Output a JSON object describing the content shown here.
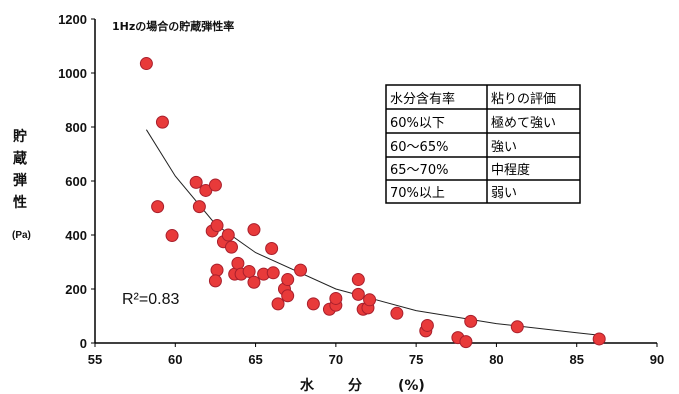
{
  "chart_data": {
    "type": "scatter",
    "title": "1Hzの場合の貯蔵弾性率",
    "ylabel": [
      "貯",
      "蔵",
      "弾",
      "性"
    ],
    "yunit": "(Pa)",
    "xlabel": [
      "水",
      "分",
      "(%)"
    ],
    "xlim": [
      55,
      90
    ],
    "ylim": [
      0,
      1200
    ],
    "xticks": [
      "55",
      "60",
      "65",
      "70",
      "75",
      "80",
      "85",
      "90"
    ],
    "yticks": [
      "0",
      "200",
      "400",
      "600",
      "800",
      "1000",
      "1200"
    ],
    "grid": false,
    "annotation": "R²=0.83",
    "points": [
      {
        "x": 58.2,
        "y": 1035
      },
      {
        "x": 59.2,
        "y": 818
      },
      {
        "x": 58.9,
        "y": 505
      },
      {
        "x": 59.8,
        "y": 398
      },
      {
        "x": 61.3,
        "y": 595
      },
      {
        "x": 61.5,
        "y": 505
      },
      {
        "x": 61.9,
        "y": 565
      },
      {
        "x": 62.5,
        "y": 585
      },
      {
        "x": 62.3,
        "y": 415
      },
      {
        "x": 62.6,
        "y": 435
      },
      {
        "x": 63.0,
        "y": 375
      },
      {
        "x": 63.3,
        "y": 400
      },
      {
        "x": 63.5,
        "y": 355
      },
      {
        "x": 62.6,
        "y": 270
      },
      {
        "x": 62.5,
        "y": 230
      },
      {
        "x": 63.7,
        "y": 255
      },
      {
        "x": 63.9,
        "y": 295
      },
      {
        "x": 64.1,
        "y": 255
      },
      {
        "x": 64.6,
        "y": 265
      },
      {
        "x": 64.9,
        "y": 420
      },
      {
        "x": 64.9,
        "y": 225
      },
      {
        "x": 65.5,
        "y": 255
      },
      {
        "x": 66.0,
        "y": 350
      },
      {
        "x": 66.1,
        "y": 260
      },
      {
        "x": 66.4,
        "y": 145
      },
      {
        "x": 66.8,
        "y": 200
      },
      {
        "x": 67.0,
        "y": 235
      },
      {
        "x": 67.0,
        "y": 175
      },
      {
        "x": 67.8,
        "y": 270
      },
      {
        "x": 68.6,
        "y": 145
      },
      {
        "x": 69.6,
        "y": 125
      },
      {
        "x": 70.0,
        "y": 140
      },
      {
        "x": 70.0,
        "y": 165
      },
      {
        "x": 71.4,
        "y": 235
      },
      {
        "x": 71.4,
        "y": 180
      },
      {
        "x": 71.7,
        "y": 125
      },
      {
        "x": 72.0,
        "y": 130
      },
      {
        "x": 72.1,
        "y": 160
      },
      {
        "x": 73.8,
        "y": 110
      },
      {
        "x": 75.6,
        "y": 45
      },
      {
        "x": 75.7,
        "y": 65
      },
      {
        "x": 77.6,
        "y": 20
      },
      {
        "x": 78.1,
        "y": 5
      },
      {
        "x": 78.4,
        "y": 80
      },
      {
        "x": 81.3,
        "y": 60
      },
      {
        "x": 86.4,
        "y": 15
      }
    ],
    "trendline": {
      "type": "power",
      "x": [
        58.2,
        60,
        62.5,
        65,
        70,
        75,
        80,
        85,
        86.5
      ],
      "y": [
        790,
        618,
        440,
        335,
        200,
        120,
        72,
        38,
        28
      ]
    },
    "table": {
      "headers": [
        "水分含有率",
        "粘りの評価"
      ],
      "rows": [
        [
          "60%以下",
          "極めて強い"
        ],
        [
          "60～65%",
          "強い"
        ],
        [
          "65～70%",
          "中程度"
        ],
        [
          "70%以上",
          "弱い"
        ]
      ]
    },
    "colors": {
      "marker_fill": "#e83a3a",
      "marker_edge": "#a81f2c",
      "axis": "#000000"
    }
  }
}
